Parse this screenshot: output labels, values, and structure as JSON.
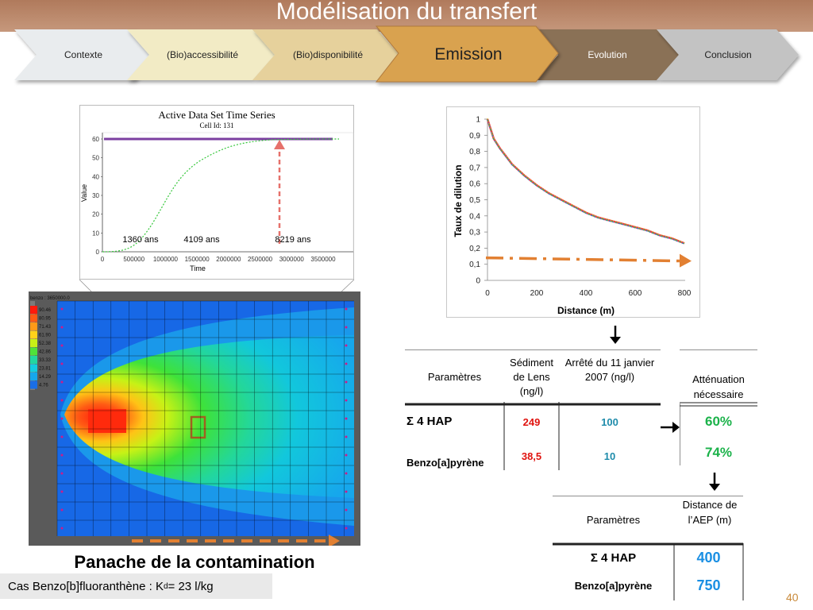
{
  "slide": {
    "title": "Modélisation du transfert",
    "page_number": "40",
    "plume_caption": "Panache de la contamination",
    "footnote_prefix": "Cas Benzo[b]fluoranthène : K",
    "footnote_sub": "d",
    "footnote_suffix": " = 23 l/kg"
  },
  "steps": [
    {
      "label": "Contexte",
      "color": "#e9ecee"
    },
    {
      "label": "(Bio)accessibilité",
      "color": "#f2ebc5"
    },
    {
      "label": "(Bio)disponibilité",
      "color": "#e6d19c"
    },
    {
      "label": "Emission",
      "color": "#d9a250",
      "active": true
    },
    {
      "label": "Evolution",
      "color": "#8a7157"
    },
    {
      "label": "Conclusion",
      "color": "#c3c3c3"
    }
  ],
  "time_series": {
    "title": "Active Data Set Time Series",
    "subtitle": "Cell Id: 131",
    "xlabel": "Time",
    "ylabel": "Value",
    "x_ticks": [
      "0",
      "500000",
      "1000000",
      "1500000",
      "2000000",
      "2500000",
      "3000000",
      "3500000"
    ],
    "y_ticks": [
      "0",
      "10",
      "20",
      "30",
      "40",
      "50",
      "60"
    ],
    "annotations": [
      "1360 ans",
      "4109 ans",
      "8219 ans"
    ]
  },
  "plume": {
    "legend_title": "benzo : 3650000.0",
    "legend_values": [
      "90.46",
      "80.95",
      "71.43",
      "61.90",
      "52.38",
      "42.86",
      "33.33",
      "23.81",
      "14.29",
      "4.76"
    ]
  },
  "chart_data": {
    "type": "line",
    "xlabel": "Distance (m)",
    "ylabel": "Taux de dilution",
    "xlim": [
      0,
      800
    ],
    "ylim": [
      0,
      1
    ],
    "x_ticks": [
      "0",
      "200",
      "400",
      "600",
      "800"
    ],
    "y_ticks": [
      "0",
      "0,1",
      "0,2",
      "0,3",
      "0,4",
      "0,5",
      "0,6",
      "0,7",
      "0,8",
      "0,9",
      "1"
    ],
    "x": [
      0,
      25,
      50,
      100,
      150,
      200,
      250,
      300,
      350,
      400,
      450,
      500,
      550,
      600,
      650,
      700,
      750,
      800
    ],
    "series": [
      {
        "values": [
          1.0,
          0.88,
          0.82,
          0.72,
          0.65,
          0.59,
          0.54,
          0.5,
          0.46,
          0.42,
          0.39,
          0.37,
          0.35,
          0.33,
          0.31,
          0.28,
          0.26,
          0.23
        ]
      }
    ],
    "threshold": 0.14
  },
  "table1": {
    "headers": [
      "Paramètres",
      "Sédiment de Lens (ng/l)",
      "Arrêté du 11 janvier 2007 (ng/l)",
      "Atténuation nécessaire"
    ],
    "rows": [
      {
        "param": "Σ 4 HAP",
        "sediment": "249",
        "arrete": "100",
        "attenuation": "60%"
      },
      {
        "param": "Benzo[a]pyrène",
        "sediment": "38,5",
        "arrete": "10",
        "attenuation": "74%"
      }
    ]
  },
  "table2": {
    "headers": [
      "Paramètres",
      "Distance de l’AEP (m)"
    ],
    "rows": [
      {
        "param": "Σ 4 HAP",
        "distance": "400"
      },
      {
        "param": "Benzo[a]pyrène",
        "distance": "750"
      }
    ]
  }
}
